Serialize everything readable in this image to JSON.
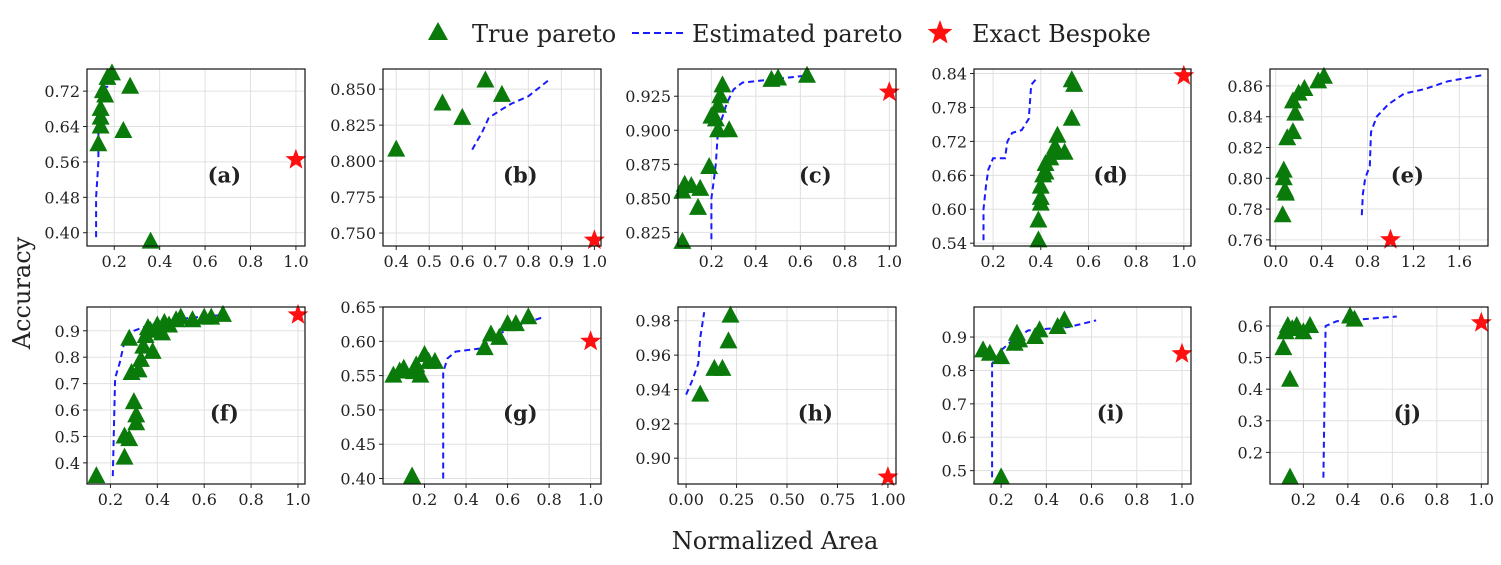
{
  "legend": {
    "true_pareto": "True pareto",
    "estimated_pareto": "Estimated pareto",
    "exact_bespoke": "Exact Bespoke"
  },
  "axes_labels": {
    "xlabel": "Normalized Area",
    "ylabel": "Accuracy"
  },
  "colors": {
    "true_pareto": "#0a7a0a",
    "estimated": "#1a1aff",
    "bespoke": "#ff1010",
    "grid": "#e0e0e0"
  },
  "chart_data": [
    {
      "type": "scatter",
      "title": "(a)",
      "xlim": [
        0.08,
        1.04
      ],
      "ylim": [
        0.37,
        0.77
      ],
      "xticks": [
        0.2,
        0.4,
        0.6,
        0.8,
        1.0
      ],
      "xtick_labels": [
        "0.2",
        "0.4",
        "0.6",
        "0.8",
        "1.0"
      ],
      "yticks": [
        0.4,
        0.48,
        0.56,
        0.64,
        0.72
      ],
      "ytick_labels": [
        "0.40",
        "0.48",
        "0.56",
        "0.64",
        "0.72"
      ],
      "true_pareto": [
        [
          0.13,
          0.6
        ],
        [
          0.14,
          0.66
        ],
        [
          0.14,
          0.68
        ],
        [
          0.15,
          0.72
        ],
        [
          0.16,
          0.71
        ],
        [
          0.17,
          0.75
        ],
        [
          0.19,
          0.76
        ],
        [
          0.27,
          0.73
        ],
        [
          0.24,
          0.63
        ],
        [
          0.14,
          0.64
        ],
        [
          0.36,
          0.38
        ]
      ],
      "estimated": [
        [
          0.12,
          0.39
        ],
        [
          0.12,
          0.48
        ],
        [
          0.13,
          0.56
        ],
        [
          0.13,
          0.64
        ],
        [
          0.14,
          0.7
        ],
        [
          0.15,
          0.73
        ],
        [
          0.17,
          0.73
        ],
        [
          0.19,
          0.74
        ]
      ],
      "bespoke": [
        1.0,
        0.565
      ]
    },
    {
      "type": "scatter",
      "title": "(b)",
      "xlim": [
        0.36,
        1.02
      ],
      "ylim": [
        0.741,
        0.864
      ],
      "xticks": [
        0.4,
        0.5,
        0.6,
        0.7,
        0.8,
        0.9,
        1.0
      ],
      "xtick_labels": [
        "0.4",
        "0.5",
        "0.6",
        "0.7",
        "0.8",
        "0.9",
        "1.0"
      ],
      "yticks": [
        0.75,
        0.775,
        0.8,
        0.825,
        0.85
      ],
      "ytick_labels": [
        "0.750",
        "0.775",
        "0.800",
        "0.825",
        "0.850"
      ],
      "true_pareto": [
        [
          0.4,
          0.808
        ],
        [
          0.54,
          0.84
        ],
        [
          0.6,
          0.83
        ],
        [
          0.67,
          0.856
        ],
        [
          0.72,
          0.846
        ]
      ],
      "estimated": [
        [
          0.63,
          0.808
        ],
        [
          0.66,
          0.82
        ],
        [
          0.68,
          0.83
        ],
        [
          0.72,
          0.836
        ],
        [
          0.75,
          0.84
        ],
        [
          0.8,
          0.845
        ],
        [
          0.86,
          0.856
        ]
      ],
      "bespoke": [
        1.0,
        0.745
      ]
    },
    {
      "type": "scatter",
      "title": "(c)",
      "xlim": [
        0.05,
        1.03
      ],
      "ylim": [
        0.815,
        0.945
      ],
      "xticks": [
        0.2,
        0.4,
        0.6,
        0.8,
        1.0
      ],
      "xtick_labels": [
        "0.2",
        "0.4",
        "0.6",
        "0.8",
        "1.0"
      ],
      "yticks": [
        0.825,
        0.85,
        0.875,
        0.9,
        0.925
      ],
      "ytick_labels": [
        "0.825",
        "0.850",
        "0.875",
        "0.900",
        "0.925"
      ],
      "true_pareto": [
        [
          0.07,
          0.818
        ],
        [
          0.07,
          0.855
        ],
        [
          0.08,
          0.86
        ],
        [
          0.11,
          0.859
        ],
        [
          0.14,
          0.843
        ],
        [
          0.15,
          0.857
        ],
        [
          0.19,
          0.873
        ],
        [
          0.2,
          0.91
        ],
        [
          0.22,
          0.908
        ],
        [
          0.23,
          0.918
        ],
        [
          0.24,
          0.925
        ],
        [
          0.25,
          0.933
        ],
        [
          0.23,
          0.9
        ],
        [
          0.28,
          0.9
        ],
        [
          0.47,
          0.937
        ],
        [
          0.5,
          0.938
        ],
        [
          0.63,
          0.94
        ]
      ],
      "estimated": [
        [
          0.2,
          0.82
        ],
        [
          0.2,
          0.85
        ],
        [
          0.21,
          0.862
        ],
        [
          0.22,
          0.875
        ],
        [
          0.23,
          0.9
        ],
        [
          0.25,
          0.91
        ],
        [
          0.27,
          0.92
        ],
        [
          0.3,
          0.93
        ],
        [
          0.34,
          0.935
        ],
        [
          0.45,
          0.937
        ],
        [
          0.62,
          0.94
        ]
      ],
      "bespoke": [
        1.0,
        0.928
      ]
    },
    {
      "type": "scatter",
      "title": "(d)",
      "xlim": [
        0.12,
        1.03
      ],
      "ylim": [
        0.535,
        0.848
      ],
      "xticks": [
        0.2,
        0.4,
        0.6,
        0.8,
        1.0
      ],
      "xtick_labels": [
        "0.2",
        "0.4",
        "0.6",
        "0.8",
        "1.0"
      ],
      "yticks": [
        0.54,
        0.6,
        0.66,
        0.72,
        0.78,
        0.84
      ],
      "ytick_labels": [
        "0.54",
        "0.60",
        "0.66",
        "0.72",
        "0.78",
        "0.84"
      ],
      "true_pareto": [
        [
          0.39,
          0.545
        ],
        [
          0.39,
          0.58
        ],
        [
          0.4,
          0.61
        ],
        [
          0.4,
          0.62
        ],
        [
          0.4,
          0.64
        ],
        [
          0.41,
          0.66
        ],
        [
          0.42,
          0.665
        ],
        [
          0.42,
          0.68
        ],
        [
          0.44,
          0.69
        ],
        [
          0.45,
          0.7
        ],
        [
          0.46,
          0.71
        ],
        [
          0.47,
          0.73
        ],
        [
          0.5,
          0.7
        ],
        [
          0.53,
          0.76
        ],
        [
          0.53,
          0.828
        ],
        [
          0.54,
          0.82
        ]
      ],
      "estimated": [
        [
          0.16,
          0.545
        ],
        [
          0.16,
          0.6
        ],
        [
          0.17,
          0.64
        ],
        [
          0.18,
          0.67
        ],
        [
          0.2,
          0.69
        ],
        [
          0.25,
          0.69
        ],
        [
          0.26,
          0.72
        ],
        [
          0.28,
          0.735
        ],
        [
          0.32,
          0.74
        ],
        [
          0.35,
          0.76
        ],
        [
          0.36,
          0.82
        ],
        [
          0.38,
          0.83
        ]
      ],
      "bespoke": [
        1.0,
        0.836
      ]
    },
    {
      "type": "scatter",
      "title": "(e)",
      "xlim": [
        -0.05,
        1.85
      ],
      "ylim": [
        0.756,
        0.871
      ],
      "xticks": [
        0.0,
        0.4,
        0.8,
        1.2,
        1.6
      ],
      "xtick_labels": [
        "0.0",
        "0.4",
        "0.8",
        "1.2",
        "1.6"
      ],
      "yticks": [
        0.76,
        0.78,
        0.8,
        0.82,
        0.84,
        0.86
      ],
      "ytick_labels": [
        "0.76",
        "0.78",
        "0.80",
        "0.82",
        "0.84",
        "0.86"
      ],
      "true_pareto": [
        [
          0.06,
          0.776
        ],
        [
          0.07,
          0.805
        ],
        [
          0.07,
          0.8
        ],
        [
          0.08,
          0.792
        ],
        [
          0.09,
          0.79
        ],
        [
          0.1,
          0.826
        ],
        [
          0.15,
          0.83
        ],
        [
          0.15,
          0.85
        ],
        [
          0.17,
          0.842
        ],
        [
          0.2,
          0.855
        ],
        [
          0.25,
          0.858
        ],
        [
          0.37,
          0.863
        ],
        [
          0.42,
          0.866
        ]
      ],
      "estimated": [
        [
          0.75,
          0.776
        ],
        [
          0.76,
          0.79
        ],
        [
          0.78,
          0.8
        ],
        [
          0.82,
          0.808
        ],
        [
          0.83,
          0.83
        ],
        [
          0.88,
          0.84
        ],
        [
          0.98,
          0.848
        ],
        [
          1.12,
          0.855
        ],
        [
          1.3,
          0.858
        ],
        [
          1.5,
          0.863
        ],
        [
          1.8,
          0.867
        ]
      ],
      "bespoke": [
        1.0,
        0.76
      ]
    },
    {
      "type": "scatter",
      "title": "(f)",
      "xlim": [
        0.1,
        1.03
      ],
      "ylim": [
        0.32,
        0.99
      ],
      "xticks": [
        0.2,
        0.4,
        0.6,
        0.8,
        1.0
      ],
      "xtick_labels": [
        "0.2",
        "0.4",
        "0.6",
        "0.8",
        "1.0"
      ],
      "yticks": [
        0.4,
        0.5,
        0.6,
        0.7,
        0.8,
        0.9
      ],
      "ytick_labels": [
        "0.4",
        "0.5",
        "0.6",
        "0.7",
        "0.8",
        "0.9"
      ],
      "true_pareto": [
        [
          0.14,
          0.35
        ],
        [
          0.26,
          0.42
        ],
        [
          0.26,
          0.5
        ],
        [
          0.28,
          0.49
        ],
        [
          0.28,
          0.87
        ],
        [
          0.29,
          0.74
        ],
        [
          0.3,
          0.63
        ],
        [
          0.31,
          0.58
        ],
        [
          0.31,
          0.55
        ],
        [
          0.32,
          0.75
        ],
        [
          0.33,
          0.79
        ],
        [
          0.34,
          0.84
        ],
        [
          0.35,
          0.88
        ],
        [
          0.36,
          0.91
        ],
        [
          0.37,
          0.9
        ],
        [
          0.38,
          0.82
        ],
        [
          0.4,
          0.91
        ],
        [
          0.4,
          0.92
        ],
        [
          0.42,
          0.89
        ],
        [
          0.43,
          0.93
        ],
        [
          0.45,
          0.92
        ],
        [
          0.48,
          0.94
        ],
        [
          0.5,
          0.95
        ],
        [
          0.55,
          0.94
        ],
        [
          0.6,
          0.95
        ],
        [
          0.63,
          0.95
        ],
        [
          0.68,
          0.96
        ]
      ],
      "estimated": [
        [
          0.21,
          0.35
        ],
        [
          0.22,
          0.72
        ],
        [
          0.24,
          0.78
        ],
        [
          0.26,
          0.86
        ],
        [
          0.3,
          0.9
        ],
        [
          0.36,
          0.92
        ],
        [
          0.45,
          0.94
        ],
        [
          0.55,
          0.95
        ],
        [
          0.68,
          0.96
        ]
      ],
      "bespoke": [
        1.0,
        0.96
      ]
    },
    {
      "type": "scatter",
      "title": "(g)",
      "xlim": [
        0.0,
        1.05
      ],
      "ylim": [
        0.392,
        0.65
      ],
      "xticks": [
        0.2,
        0.4,
        0.6,
        0.8,
        1.0
      ],
      "xtick_labels": [
        "0.2",
        "0.4",
        "0.6",
        "0.8",
        "1.0"
      ],
      "yticks": [
        0.4,
        0.45,
        0.5,
        0.55,
        0.6,
        0.65
      ],
      "ytick_labels": [
        "0.40",
        "0.45",
        "0.50",
        "0.55",
        "0.60",
        "0.65"
      ],
      "true_pareto": [
        [
          0.05,
          0.55
        ],
        [
          0.08,
          0.556
        ],
        [
          0.1,
          0.56
        ],
        [
          0.15,
          0.555
        ],
        [
          0.16,
          0.565
        ],
        [
          0.18,
          0.55
        ],
        [
          0.2,
          0.58
        ],
        [
          0.22,
          0.57
        ],
        [
          0.25,
          0.57
        ],
        [
          0.14,
          0.403
        ],
        [
          0.49,
          0.59
        ],
        [
          0.52,
          0.61
        ],
        [
          0.56,
          0.605
        ],
        [
          0.6,
          0.625
        ],
        [
          0.64,
          0.625
        ],
        [
          0.7,
          0.635
        ]
      ],
      "estimated": [
        [
          0.29,
          0.4
        ],
        [
          0.29,
          0.555
        ],
        [
          0.31,
          0.575
        ],
        [
          0.35,
          0.585
        ],
        [
          0.48,
          0.59
        ],
        [
          0.52,
          0.605
        ],
        [
          0.62,
          0.62
        ],
        [
          0.77,
          0.635
        ]
      ],
      "bespoke": [
        1.0,
        0.6
      ]
    },
    {
      "type": "scatter",
      "title": "(h)",
      "xlim": [
        -0.04,
        1.04
      ],
      "ylim": [
        0.885,
        0.988
      ],
      "xticks": [
        0.0,
        0.25,
        0.5,
        0.75,
        1.0
      ],
      "xtick_labels": [
        "0.00",
        "0.25",
        "0.50",
        "0.75",
        "1.00"
      ],
      "yticks": [
        0.9,
        0.92,
        0.94,
        0.96,
        0.98
      ],
      "ytick_labels": [
        "0.90",
        "0.92",
        "0.94",
        "0.96",
        "0.98"
      ],
      "true_pareto": [
        [
          0.07,
          0.937
        ],
        [
          0.14,
          0.952
        ],
        [
          0.18,
          0.952
        ],
        [
          0.21,
          0.968
        ],
        [
          0.22,
          0.983
        ]
      ],
      "estimated": [
        [
          0.0,
          0.937
        ],
        [
          0.03,
          0.945
        ],
        [
          0.06,
          0.955
        ],
        [
          0.07,
          0.97
        ],
        [
          0.09,
          0.985
        ]
      ],
      "bespoke": [
        1.0,
        0.889
      ]
    },
    {
      "type": "scatter",
      "title": "(i)",
      "xlim": [
        0.08,
        1.04
      ],
      "ylim": [
        0.46,
        0.99
      ],
      "xticks": [
        0.2,
        0.4,
        0.6,
        0.8,
        1.0
      ],
      "xtick_labels": [
        "0.2",
        "0.4",
        "0.6",
        "0.8",
        "1.0"
      ],
      "yticks": [
        0.5,
        0.6,
        0.7,
        0.8,
        0.9
      ],
      "ytick_labels": [
        "0.5",
        "0.6",
        "0.7",
        "0.8",
        "0.9"
      ],
      "true_pareto": [
        [
          0.12,
          0.86
        ],
        [
          0.15,
          0.85
        ],
        [
          0.2,
          0.84
        ],
        [
          0.2,
          0.48
        ],
        [
          0.26,
          0.88
        ],
        [
          0.27,
          0.91
        ],
        [
          0.28,
          0.89
        ],
        [
          0.35,
          0.9
        ],
        [
          0.37,
          0.92
        ],
        [
          0.45,
          0.93
        ],
        [
          0.48,
          0.95
        ]
      ],
      "estimated": [
        [
          0.16,
          0.48
        ],
        [
          0.16,
          0.82
        ],
        [
          0.2,
          0.86
        ],
        [
          0.25,
          0.89
        ],
        [
          0.32,
          0.92
        ],
        [
          0.5,
          0.93
        ],
        [
          0.62,
          0.95
        ]
      ],
      "bespoke": [
        1.0,
        0.85
      ]
    },
    {
      "type": "scatter",
      "title": "(j)",
      "xlim": [
        0.05,
        1.03
      ],
      "ylim": [
        0.1,
        0.66
      ],
      "xticks": [
        0.2,
        0.4,
        0.6,
        0.8,
        1.0
      ],
      "xtick_labels": [
        "0.2",
        "0.4",
        "0.6",
        "0.8",
        "1.0"
      ],
      "yticks": [
        0.2,
        0.3,
        0.4,
        0.5,
        0.6
      ],
      "ytick_labels": [
        "0.2",
        "0.3",
        "0.4",
        "0.5",
        "0.6"
      ],
      "true_pareto": [
        [
          0.11,
          0.53
        ],
        [
          0.12,
          0.58
        ],
        [
          0.13,
          0.6
        ],
        [
          0.14,
          0.43
        ],
        [
          0.14,
          0.12
        ],
        [
          0.15,
          0.59
        ],
        [
          0.17,
          0.6
        ],
        [
          0.2,
          0.58
        ],
        [
          0.23,
          0.6
        ],
        [
          0.41,
          0.63
        ],
        [
          0.43,
          0.62
        ]
      ],
      "estimated": [
        [
          0.29,
          0.12
        ],
        [
          0.3,
          0.6
        ],
        [
          0.35,
          0.615
        ],
        [
          0.45,
          0.62
        ],
        [
          0.62,
          0.63
        ]
      ],
      "bespoke": [
        1.0,
        0.61
      ]
    }
  ]
}
